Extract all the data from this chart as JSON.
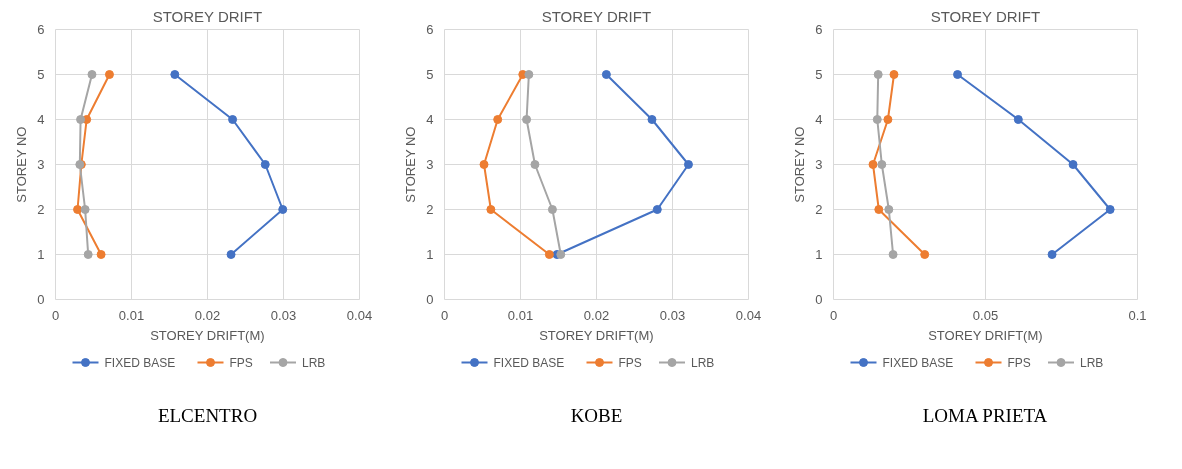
{
  "chart_data": [
    {
      "type": "line",
      "title": "STOREY DRIFT",
      "xlabel": "STOREY DRIFT(M)",
      "ylabel": "STOREY NO",
      "xlim": [
        0,
        0.04
      ],
      "xticks": [
        0,
        0.01,
        0.02,
        0.03,
        0.04
      ],
      "ylim": [
        0,
        6
      ],
      "yticks": [
        0,
        1,
        2,
        3,
        4,
        5,
        6
      ],
      "grid": true,
      "legend": "bottom",
      "marker": "circle",
      "line_style": "solid",
      "annotations": [
        "ELCENTRO"
      ],
      "series": [
        {
          "name": "FIXED BASE",
          "color": "#4472c4",
          "x": [
            0.0231,
            0.0299,
            0.0276,
            0.0233,
            0.0157
          ],
          "values": [
            1,
            2,
            3,
            4,
            5
          ]
        },
        {
          "name": "FPS",
          "color": "#ed7d31",
          "x": [
            0.006,
            0.0029,
            0.0034,
            0.0041,
            0.0071
          ],
          "values": [
            1,
            2,
            3,
            4,
            5
          ]
        },
        {
          "name": "LRB",
          "color": "#a5a5a5",
          "x": [
            0.0043,
            0.0039,
            0.0032,
            0.0033,
            0.0048
          ],
          "values": [
            1,
            2,
            3,
            4,
            5
          ]
        }
      ]
    },
    {
      "type": "line",
      "title": "STOREY DRIFT",
      "xlabel": "STOREY DRIFT(M)",
      "ylabel": "STOREY NO",
      "xlim": [
        0,
        0.04
      ],
      "xticks": [
        0,
        0.01,
        0.02,
        0.03,
        0.04
      ],
      "ylim": [
        0,
        6
      ],
      "yticks": [
        0,
        1,
        2,
        3,
        4,
        5,
        6
      ],
      "grid": true,
      "legend": "bottom",
      "marker": "circle",
      "line_style": "solid",
      "annotations": [
        "KOBE"
      ],
      "series": [
        {
          "name": "FIXED BASE",
          "color": "#4472c4",
          "x": [
            0.0148,
            0.028,
            0.0321,
            0.0273,
            0.0213
          ],
          "values": [
            1,
            2,
            3,
            4,
            5
          ]
        },
        {
          "name": "FPS",
          "color": "#ed7d31",
          "x": [
            0.0138,
            0.0061,
            0.0052,
            0.007,
            0.0103
          ],
          "values": [
            1,
            2,
            3,
            4,
            5
          ]
        },
        {
          "name": "LRB",
          "color": "#a5a5a5",
          "x": [
            0.0153,
            0.0142,
            0.0119,
            0.0108,
            0.0111
          ],
          "values": [
            1,
            2,
            3,
            4,
            5
          ]
        }
      ]
    },
    {
      "type": "line",
      "title": "STOREY DRIFT",
      "xlabel": "STOREY DRIFT(M)",
      "ylabel": "STOREY NO",
      "xlim": [
        0,
        0.1
      ],
      "xticks": [
        0,
        0.05,
        0.1
      ],
      "ylim": [
        0,
        6
      ],
      "yticks": [
        0,
        1,
        2,
        3,
        4,
        5,
        6
      ],
      "grid": true,
      "legend": "bottom",
      "marker": "circle",
      "line_style": "solid",
      "annotations": [
        "LOMA PRIETA"
      ],
      "series": [
        {
          "name": "FIXED BASE",
          "color": "#4472c4",
          "x": [
            0.0719,
            0.091,
            0.0788,
            0.0608,
            0.0408
          ],
          "values": [
            1,
            2,
            3,
            4,
            5
          ]
        },
        {
          "name": "FPS",
          "color": "#ed7d31",
          "x": [
            0.03,
            0.0149,
            0.013,
            0.0179,
            0.0199
          ],
          "values": [
            1,
            2,
            3,
            4,
            5
          ]
        },
        {
          "name": "LRB",
          "color": "#a5a5a5",
          "x": [
            0.0196,
            0.0182,
            0.0159,
            0.0144,
            0.0147
          ],
          "values": [
            1,
            2,
            3,
            4,
            5
          ]
        }
      ]
    }
  ]
}
